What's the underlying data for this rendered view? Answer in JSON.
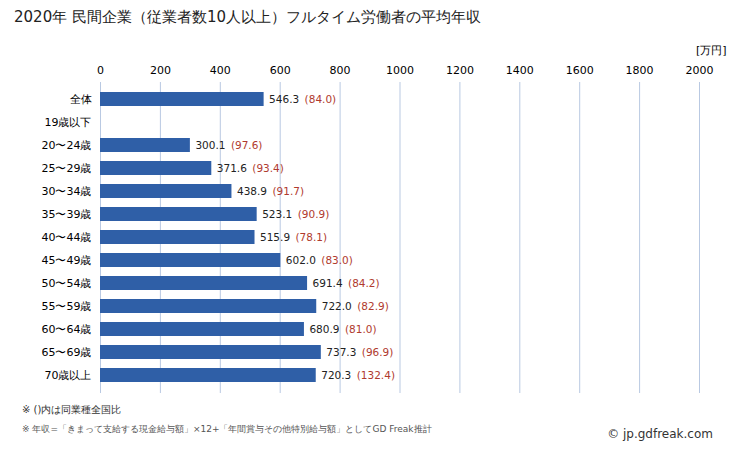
{
  "chart_data": {
    "type": "bar",
    "title": "2020年 民間企業（従業者数10人以上）フルタイム労働者の平均年収",
    "xlabel": "[万円]",
    "orientation": "horizontal",
    "categories": [
      "全体",
      "19歳以下",
      "20〜24歳",
      "25〜29歳",
      "30〜34歳",
      "35〜39歳",
      "40〜44歳",
      "45〜49歳",
      "50〜54歳",
      "55〜59歳",
      "60〜64歳",
      "65〜69歳",
      "70歳以上"
    ],
    "values": [
      546.3,
      null,
      300.1,
      371.6,
      438.9,
      523.1,
      515.9,
      602.0,
      691.4,
      722.0,
      680.9,
      737.3,
      720.3
    ],
    "value_labels": [
      "546.3",
      null,
      "300.1",
      "371.6",
      "438.9",
      "523.1",
      "515.9",
      "602.0",
      "691.4",
      "722.0",
      "680.9",
      "737.3",
      "720.3"
    ],
    "ratios": [
      84.0,
      null,
      97.6,
      93.4,
      91.7,
      90.9,
      78.1,
      83.0,
      84.2,
      82.9,
      81.0,
      96.9,
      132.4
    ],
    "ratio_labels": [
      "(84.0)",
      null,
      "(97.6)",
      "(93.4)",
      "(91.7)",
      "(90.9)",
      "(78.1)",
      "(83.0)",
      "(84.2)",
      "(82.9)",
      "(81.0)",
      "(96.9)",
      "(132.4)"
    ],
    "color": "#2f5fa7",
    "xlim": [
      0,
      2000
    ],
    "xticks": [
      0,
      200,
      400,
      600,
      800,
      1000,
      1200,
      1400,
      1600,
      1800,
      2000
    ],
    "grid": true,
    "data_labels": true,
    "notes": [
      "※ ()内は同業種全国比",
      "※ 年収=「きまって支給する現金給与額」×12+「年間賞与その他特別給与額」としてGD Freak推計"
    ],
    "source": "© jp.gdfreak.com"
  }
}
